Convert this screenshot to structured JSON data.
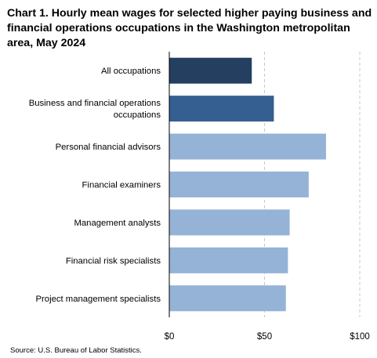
{
  "chart_data": {
    "type": "bar",
    "orientation": "horizontal",
    "title": "Chart 1. Hourly mean wages for selected higher paying business and financial operations occupations in the Washington metropolitan area, May 2024",
    "categories": [
      "All occupations",
      "Business and financial operations occupations",
      "Personal financial advisors",
      "Financial examiners",
      "Management analysts",
      "Financial risk specialists",
      "Project management specialists"
    ],
    "values": [
      43.3,
      54.9,
      82.3,
      73.2,
      63.2,
      62.3,
      61.2
    ],
    "bar_colors": [
      "#243f60",
      "#355f91",
      "#95b3d7",
      "#95b3d7",
      "#95b3d7",
      "#95b3d7",
      "#95b3d7"
    ],
    "xlim": [
      0,
      100
    ],
    "xticks": [
      0,
      50,
      100
    ],
    "xtick_labels": [
      "$0",
      "$50",
      "$100"
    ],
    "grid": true,
    "grid_style": "dashed-vertical",
    "source": "Source: U.S. Bureau of Labor Statistics."
  }
}
